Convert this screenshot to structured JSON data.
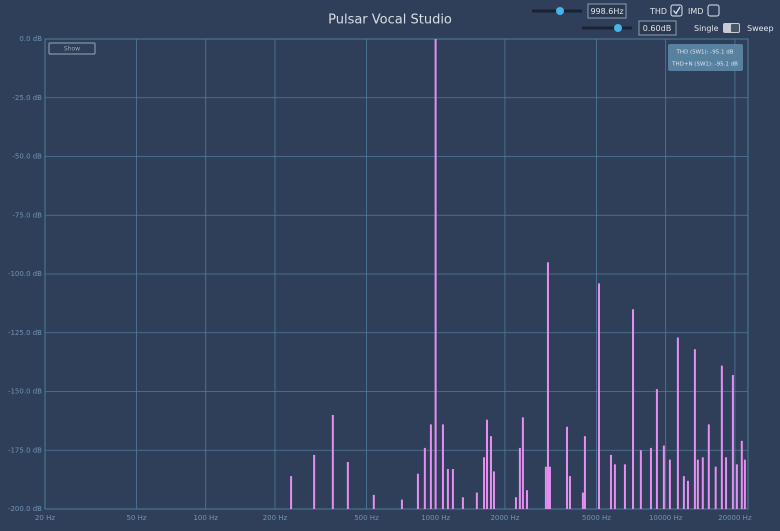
{
  "chart_data": {
    "type": "bar",
    "title": "Pulsar Vocal Studio",
    "x": [
      235,
      296,
      357,
      415,
      538,
      713,
      837,
      897,
      953,
      999,
      1075,
      1130,
      1188,
      1313,
      1510,
      1622,
      1671,
      1739,
      1792,
      2233,
      2323,
      2394,
      2494,
      3014,
      3077,
      3139,
      3723,
      3835,
      4366,
      4455,
      5129,
      5782,
      6015,
      6650,
      7210,
      7800,
      8630,
      9160,
      9820,
      10430,
      11300,
      12000,
      12500,
      13400,
      13800,
      14500,
      15400,
      16500,
      17550,
      18300,
      19600,
      20400,
      21430,
      22100
    ],
    "values": [
      -186,
      -177,
      -160,
      -180,
      -194,
      -196,
      -185,
      -174,
      -164,
      0,
      -164,
      -183,
      -183,
      -195,
      -193,
      -178,
      -162,
      -169,
      -184,
      -195,
      -174,
      -161,
      -192,
      -182,
      -95,
      -182,
      -165,
      -186,
      -193,
      -169,
      -104,
      -177,
      -181,
      -181,
      -115,
      -175,
      -174,
      -149,
      -173,
      -179,
      -127,
      -186,
      -188,
      -132,
      -179,
      -178,
      -164,
      -182,
      -139,
      -178,
      -143,
      -181,
      -171,
      -179
    ],
    "color": "#e68ff0",
    "xlim": [
      20,
      22800
    ],
    "ylim": [
      -200,
      0
    ],
    "log_x": true,
    "grid": true,
    "xticks": [
      {
        "value": 20,
        "label": "20 Hz"
      },
      {
        "value": 50,
        "label": "50 Hz"
      },
      {
        "value": 100,
        "label": "100 Hz"
      },
      {
        "value": 200,
        "label": "200 Hz"
      },
      {
        "value": 500,
        "label": "500 Hz"
      },
      {
        "value": 1000,
        "label": "1000 Hz"
      },
      {
        "value": 2000,
        "label": "2000 Hz"
      },
      {
        "value": 5000,
        "label": "5000 Hz"
      },
      {
        "value": 10000,
        "label": "10000 Hz"
      },
      {
        "value": 20000,
        "label": "20000 Hz"
      }
    ],
    "yticks": [
      {
        "value": 0,
        "label": "0.0 dB"
      },
      {
        "value": -25,
        "label": "-25.0 dB"
      },
      {
        "value": -50,
        "label": "-50.0 dB"
      },
      {
        "value": -75,
        "label": "-75.0 dB"
      },
      {
        "value": -100,
        "label": "-100.0 dB"
      },
      {
        "value": -125,
        "label": "-125.0 dB"
      },
      {
        "value": -150,
        "label": "-150.0 dB"
      },
      {
        "value": -175,
        "label": "-175.0 dB"
      },
      {
        "value": -200,
        "label": "-200.0 dB"
      }
    ]
  },
  "controls": {
    "frequency": "998.6Hz",
    "gain": "0.60dB",
    "thd_label": "THD",
    "thd_checked": true,
    "imd_label": "IMD",
    "imd_checked": false,
    "mode_left": "Single",
    "mode_right": "Sweep",
    "show_button": "Show"
  },
  "readout": [
    "THD (SW1): -95.1 dB",
    "THD+N (SW1): -95.1 dB"
  ]
}
